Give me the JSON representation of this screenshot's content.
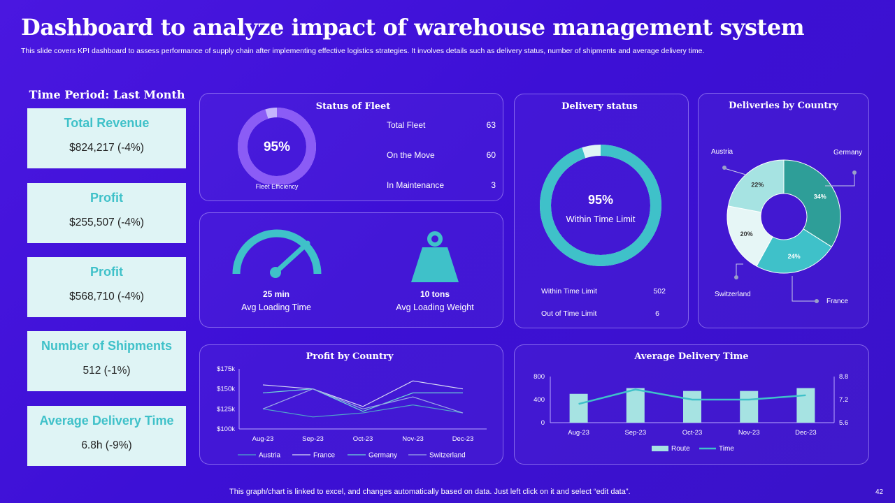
{
  "header": {
    "title": "Dashboard to analyze impact of warehouse management system",
    "subtitle": "This slide covers KPI dashboard to assess performance of supply chain after implementing effective logistics strategies. It involves details such as delivery status, number of shipments and average delivery time."
  },
  "period": "Time Period: Last Month",
  "kpis": [
    {
      "label": "Total Revenue",
      "value": "$824,217 (-4%)"
    },
    {
      "label": "Profit",
      "value": "$255,507 (-4%)"
    },
    {
      "label": "Profit",
      "value": "$568,710 (-4%)"
    },
    {
      "label": "Number of Shipments",
      "value": "512 (-1%)"
    },
    {
      "label": "Average Delivery Time",
      "value": "6.8h (-9%)"
    }
  ],
  "fleet": {
    "title": "Status of Fleet",
    "efficiency_value": "95%",
    "efficiency_fraction": 0.95,
    "efficiency_label": "Fleet Efficiency",
    "rows": [
      {
        "label": "Total Fleet",
        "value": "63"
      },
      {
        "label": "On the Move",
        "value": "60"
      },
      {
        "label": "In Maintenance",
        "value": "3"
      }
    ]
  },
  "loading": {
    "time_value": "25 min",
    "time_label": "Avg Loading Time",
    "weight_value": "10 tons",
    "weight_label": "Avg Loading Weight"
  },
  "delivery_status": {
    "title": "Delivery status",
    "percent": "95%",
    "percent_fraction": 0.95,
    "percent_label": "Within Time Limit",
    "rows": [
      {
        "label": "Within Time Limit",
        "value": "502"
      },
      {
        "label": "Out of Time Limit",
        "value": "6"
      }
    ]
  },
  "colors": {
    "teal": "#3fc1c9",
    "teal_dark": "#2e9e98",
    "teal_light": "#a6e3e2",
    "teal_pale": "#dff4f5",
    "violet": "#8b5cf6",
    "violet_light": "#c4b5fd",
    "panel_border": "#b9a8ff"
  },
  "chart_data": [
    {
      "type": "pie",
      "title": "Deliveries by Country",
      "slices": [
        {
          "name": "Germany",
          "value": 34,
          "label": "34%",
          "color": "#2e9e98"
        },
        {
          "name": "France",
          "value": 24,
          "label": "24%",
          "color": "#3fc1c9"
        },
        {
          "name": "Switzerland",
          "value": 20,
          "label": "20%",
          "color": "#e6f6f6"
        },
        {
          "name": "Austria",
          "value": 22,
          "label": "22%",
          "color": "#a6e3e2"
        }
      ]
    },
    {
      "type": "line",
      "title": "Profit by Country",
      "categories": [
        "Aug-23",
        "Sep-23",
        "Oct-23",
        "Nov-23",
        "Dec-23"
      ],
      "ylim": [
        100,
        175
      ],
      "yticks": [
        {
          "value": 100,
          "label": "$100k"
        },
        {
          "value": 125,
          "label": "$125k"
        },
        {
          "value": 150,
          "label": "$150k"
        },
        {
          "value": 175,
          "label": "$175k"
        }
      ],
      "series": [
        {
          "name": "Austria",
          "values": [
            125,
            115,
            120,
            130,
            120
          ],
          "color": "#4fa6c9"
        },
        {
          "name": "France",
          "values": [
            155,
            150,
            128,
            160,
            150
          ],
          "color": "#d8dcf5"
        },
        {
          "name": "Germany",
          "values": [
            145,
            150,
            122,
            145,
            145
          ],
          "color": "#6fd6d6"
        },
        {
          "name": "Switzerland",
          "values": [
            125,
            150,
            125,
            140,
            120
          ],
          "color": "#9aa8e6"
        }
      ]
    },
    {
      "type": "bar",
      "title": "Average Delivery Time",
      "categories": [
        "Aug-23",
        "Sep-23",
        "Oct-23",
        "Nov-23",
        "Dec-23"
      ],
      "series": [
        {
          "name": "Route",
          "type": "bar",
          "axis": "left",
          "values": [
            500,
            600,
            550,
            550,
            600
          ],
          "color": "#a6e3e2"
        },
        {
          "name": "Time",
          "type": "line",
          "axis": "right",
          "values": [
            6.9,
            7.9,
            7.2,
            7.2,
            7.5
          ],
          "color": "#3fc1c9"
        }
      ],
      "ylim": [
        0,
        800
      ],
      "yticks": [
        "0",
        "400",
        "800"
      ],
      "y2lim": [
        5.6,
        8.8
      ],
      "y2ticks": [
        "5.6",
        "7.2",
        "8.8"
      ]
    }
  ],
  "footer": {
    "note": "This graph/chart is linked to excel, and changes automatically based on data. Just left click on it and select “edit data”.",
    "page_number": "42"
  }
}
